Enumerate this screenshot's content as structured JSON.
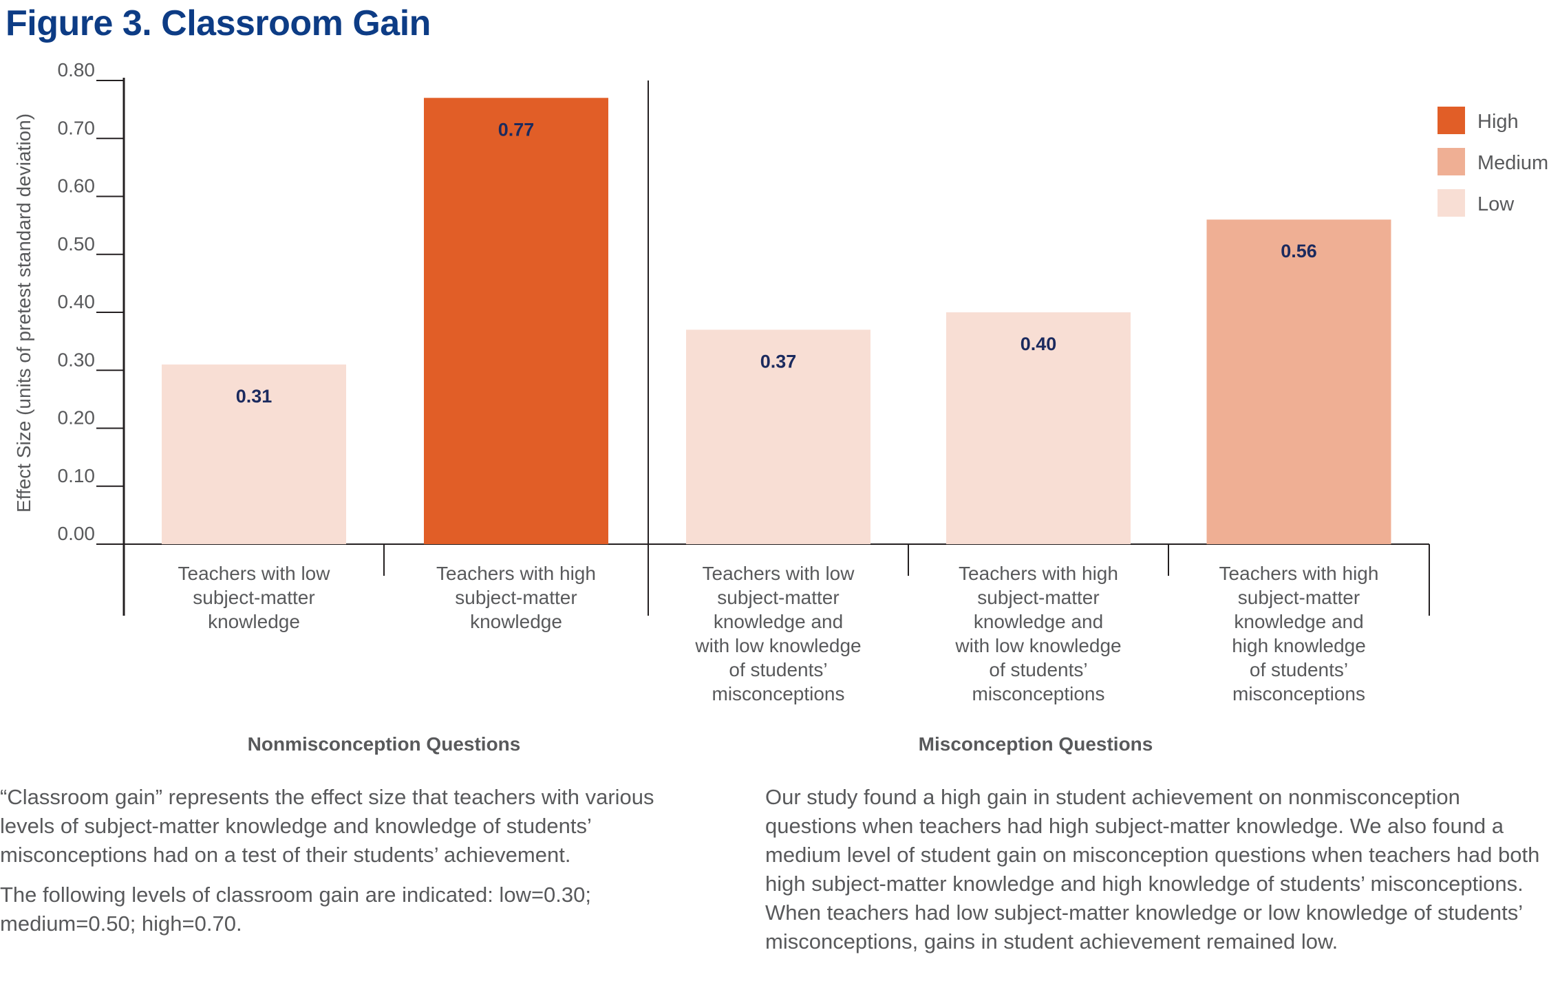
{
  "title": "Figure 3. Classroom Gain",
  "colors": {
    "high": "#e15e27",
    "medium": "#efaf94",
    "low": "#f8ded4",
    "title": "#0d3c85",
    "value_label": "#1b2a5e",
    "axis": "#231f20",
    "text": "#58595b"
  },
  "chart_data": {
    "type": "bar",
    "title": "Figure 3. Classroom Gain",
    "ylabel": "Effect Size (units of pretest standard deviation)",
    "xlabel": "",
    "ylim": [
      0,
      0.8
    ],
    "yticks": [
      "0.00",
      "0.10",
      "0.20",
      "0.30",
      "0.40",
      "0.50",
      "0.60",
      "0.70",
      "0.80"
    ],
    "grid": false,
    "legend_position": "top-right",
    "legend": [
      {
        "name": "High",
        "color": "#e15e27"
      },
      {
        "name": "Medium",
        "color": "#efaf94"
      },
      {
        "name": "Low",
        "color": "#f8ded4"
      }
    ],
    "groups": [
      {
        "label": "Nonmisconception Questions",
        "bar_count": 2
      },
      {
        "label": "Misconception Questions",
        "bar_count": 3
      }
    ],
    "bars": [
      {
        "category": [
          "Teachers with low",
          "subject-matter",
          "knowledge"
        ],
        "value": 0.31,
        "value_label": "0.31",
        "level": "Low"
      },
      {
        "category": [
          "Teachers with high",
          "subject-matter",
          "knowledge"
        ],
        "value": 0.77,
        "value_label": "0.77",
        "level": "High"
      },
      {
        "category": [
          "Teachers with low",
          "subject-matter",
          "knowledge and",
          "with low knowledge",
          "of students’",
          "misconceptions"
        ],
        "value": 0.37,
        "value_label": "0.37",
        "level": "Low"
      },
      {
        "category": [
          "Teachers with high",
          "subject-matter",
          "knowledge and",
          "with low knowledge",
          "of students’",
          "misconceptions"
        ],
        "value": 0.4,
        "value_label": "0.40",
        "level": "Low"
      },
      {
        "category": [
          "Teachers with high",
          "subject-matter",
          "knowledge and",
          "high knowledge",
          "of students’",
          "misconceptions"
        ],
        "value": 0.56,
        "value_label": "0.56",
        "level": "Medium"
      }
    ]
  },
  "notes": {
    "left": [
      "“Classroom gain” represents the effect size that teachers with various levels of subject-matter knowledge and knowledge of students’ misconceptions had on a test of their students’ achievement.",
      "The following levels of classroom gain are indicated: low=0.30; medium=0.50; high=0.70."
    ],
    "right": [
      "Our study found a high gain in student achievement on nonmiscon­ception questions when teachers had high subject-matter knowledge. We also found a medium level of student gain on misconception questions when teachers had both high subject-matter knowledge and high knowledge of students’ misconceptions. When teachers had low subject-matter knowledge or low knowledge of students’ misconceptions, gains in student achievement remained low."
    ]
  }
}
